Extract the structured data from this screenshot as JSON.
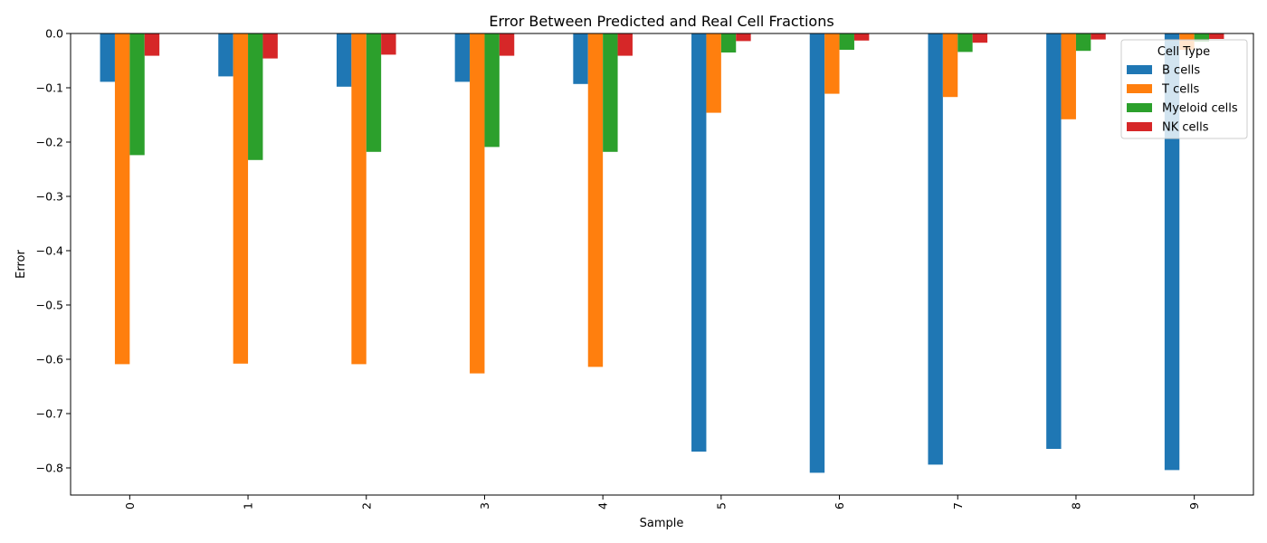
{
  "chart_data": {
    "type": "bar",
    "title": "Error Between Predicted and Real Cell Fractions",
    "xlabel": "Sample",
    "ylabel": "Error",
    "categories": [
      "0",
      "1",
      "2",
      "3",
      "4",
      "5",
      "6",
      "7",
      "8",
      "9"
    ],
    "ylim": [
      -0.85,
      0.0
    ],
    "yticks": [
      0.0,
      -0.1,
      -0.2,
      -0.3,
      -0.4,
      -0.5,
      -0.6,
      -0.7,
      -0.8
    ],
    "ytick_labels": [
      "0.0",
      "−0.1",
      "−0.2",
      "−0.3",
      "−0.4",
      "−0.5",
      "−0.6",
      "−0.7",
      "−0.8"
    ],
    "grid": false,
    "legend": {
      "title": "Cell Type",
      "placement": "upper right"
    },
    "series": [
      {
        "name": "B cells",
        "color": "#1f77b4",
        "values": [
          -0.089,
          -0.079,
          -0.098,
          -0.089,
          -0.093,
          -0.77,
          -0.809,
          -0.794,
          -0.765,
          -0.804
        ]
      },
      {
        "name": "T cells",
        "color": "#ff7f0e",
        "values": [
          -0.609,
          -0.608,
          -0.609,
          -0.626,
          -0.614,
          -0.146,
          -0.111,
          -0.117,
          -0.158,
          -0.03
        ]
      },
      {
        "name": "Myeloid cells",
        "color": "#2ca02c",
        "values": [
          -0.224,
          -0.233,
          -0.218,
          -0.209,
          -0.218,
          -0.035,
          -0.03,
          -0.034,
          -0.032,
          -0.015
        ]
      },
      {
        "name": "NK cells",
        "color": "#d62728",
        "values": [
          -0.041,
          -0.046,
          -0.039,
          -0.041,
          -0.041,
          -0.014,
          -0.013,
          -0.017,
          -0.011,
          -0.01
        ]
      }
    ]
  }
}
